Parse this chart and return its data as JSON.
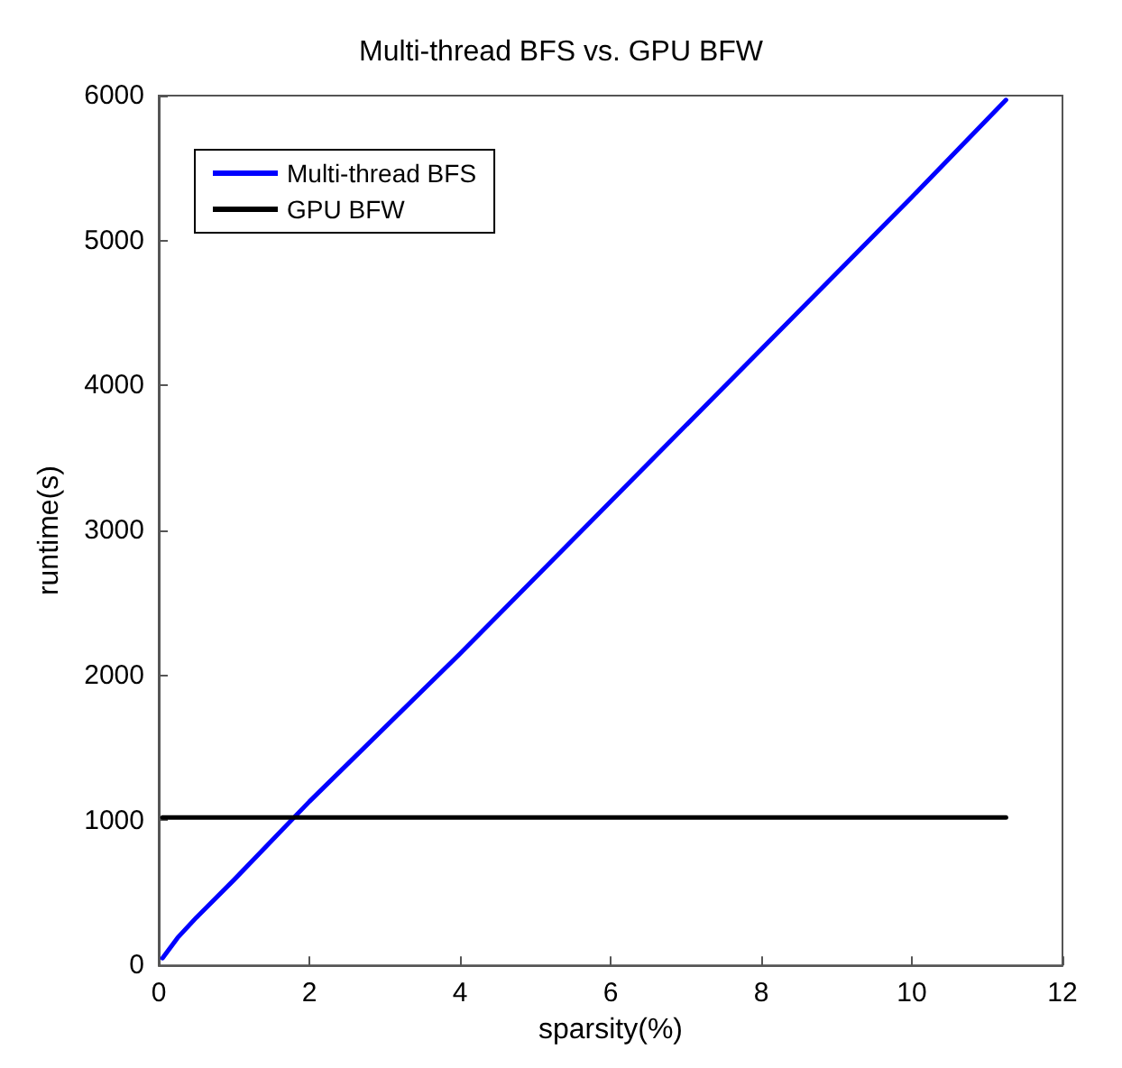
{
  "chart_data": {
    "type": "line",
    "title": "Multi-thread BFS vs. GPU BFW",
    "xlabel": "sparsity(%)",
    "ylabel": "runtime(s)",
    "xlim": [
      0,
      12
    ],
    "xticks": [
      0,
      2,
      4,
      6,
      8,
      10,
      12
    ],
    "ylim": [
      0,
      6000
    ],
    "yticks": [
      0,
      1000,
      2000,
      3000,
      4000,
      5000,
      6000
    ],
    "grid": false,
    "legend": "top left",
    "marker": "none",
    "line_style": "solid",
    "series": [
      {
        "name": "Multi-thread BFS",
        "color": "#0000ff",
        "x": [
          0.05,
          0.25,
          0.5,
          1,
          2,
          4,
          6,
          8,
          10,
          11.25
        ],
        "values": [
          50,
          190,
          330,
          590,
          1130,
          2150,
          3200,
          4250,
          5300,
          5970
        ]
      },
      {
        "name": "GPU BFW",
        "color": "#000000",
        "x": [
          0.05,
          11.25
        ],
        "values": [
          1020,
          1020
        ]
      }
    ]
  }
}
